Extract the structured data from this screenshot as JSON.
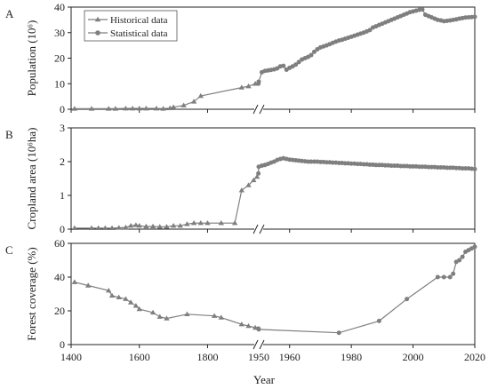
{
  "chart_data": {
    "type": "line",
    "xlabel": "Year",
    "x_ticks": [
      "1400",
      "1600",
      "1800",
      "1950",
      "1960",
      "1980",
      "2000",
      "2020"
    ],
    "x_axis_break": {
      "at": 1950,
      "left_range": [
        1400,
        1950
      ],
      "right_range": [
        1950,
        2020
      ]
    },
    "legend": {
      "placement": "top-left of panel A",
      "entries": [
        "Historical data",
        "Statistical data"
      ]
    },
    "colors": {
      "series": "#7f7f7f",
      "axis": "#222222"
    },
    "panels": [
      {
        "letter": "A",
        "ylabel": "Population (10⁶)",
        "ylim": [
          0,
          40
        ],
        "y_ticks": [
          "0",
          "10",
          "20",
          "30",
          "40"
        ],
        "series": [
          {
            "name": "Historical data",
            "marker": "triangle",
            "points": [
              [
                1410,
                0.2
              ],
              [
                1460,
                0.2
              ],
              [
                1510,
                0.2
              ],
              [
                1530,
                0.2
              ],
              [
                1560,
                0.3
              ],
              [
                1580,
                0.3
              ],
              [
                1600,
                0.3
              ],
              [
                1620,
                0.3
              ],
              [
                1650,
                0.3
              ],
              [
                1670,
                0.2
              ],
              [
                1690,
                0.4
              ],
              [
                1700,
                0.8
              ],
              [
                1730,
                1.5
              ],
              [
                1760,
                3.0
              ],
              [
                1780,
                5.2
              ],
              [
                1900,
                8.5
              ],
              [
                1920,
                9.0
              ],
              [
                1940,
                10.0
              ]
            ]
          },
          {
            "name": "Statistical data",
            "marker": "circle",
            "points": [
              [
                1949,
                10.0
              ],
              [
                1950,
                10.8
              ],
              [
                1951,
                14.5
              ],
              [
                1952,
                15.0
              ],
              [
                1953,
                15.2
              ],
              [
                1954,
                15.4
              ],
              [
                1955,
                15.6
              ],
              [
                1956,
                16.0
              ],
              [
                1957,
                16.8
              ],
              [
                1958,
                17.0
              ],
              [
                1959,
                15.5
              ],
              [
                1960,
                16.2
              ],
              [
                1961,
                16.8
              ],
              [
                1962,
                17.5
              ],
              [
                1963,
                18.5
              ],
              [
                1964,
                19.5
              ],
              [
                1965,
                20.0
              ],
              [
                1966,
                20.5
              ],
              [
                1967,
                21.2
              ],
              [
                1968,
                22.5
              ],
              [
                1969,
                23.5
              ],
              [
                1970,
                24.2
              ],
              [
                1971,
                24.6
              ],
              [
                1972,
                25.0
              ],
              [
                1973,
                25.5
              ],
              [
                1974,
                26.0
              ],
              [
                1975,
                26.5
              ],
              [
                1976,
                26.9
              ],
              [
                1977,
                27.2
              ],
              [
                1978,
                27.6
              ],
              [
                1979,
                28.0
              ],
              [
                1980,
                28.4
              ],
              [
                1981,
                28.8
              ],
              [
                1982,
                29.2
              ],
              [
                1983,
                29.6
              ],
              [
                1984,
                30.0
              ],
              [
                1985,
                30.5
              ],
              [
                1986,
                31.0
              ],
              [
                1987,
                32.0
              ],
              [
                1988,
                32.5
              ],
              [
                1989,
                33.0
              ],
              [
                1990,
                33.5
              ],
              [
                1991,
                34.0
              ],
              [
                1992,
                34.5
              ],
              [
                1993,
                35.0
              ],
              [
                1994,
                35.5
              ],
              [
                1995,
                36.0
              ],
              [
                1996,
                36.5
              ],
              [
                1997,
                37.0
              ],
              [
                1998,
                37.5
              ],
              [
                1999,
                38.0
              ],
              [
                2000,
                38.3
              ],
              [
                2001,
                38.6
              ],
              [
                2002,
                38.9
              ],
              [
                2003,
                39.1
              ],
              [
                2004,
                37.0
              ],
              [
                2005,
                36.5
              ],
              [
                2006,
                36.0
              ],
              [
                2007,
                35.5
              ],
              [
                2008,
                35.0
              ],
              [
                2009,
                34.8
              ],
              [
                2010,
                34.5
              ],
              [
                2011,
                34.6
              ],
              [
                2012,
                34.8
              ],
              [
                2013,
                35.0
              ],
              [
                2014,
                35.2
              ],
              [
                2015,
                35.5
              ],
              [
                2016,
                35.7
              ],
              [
                2017,
                35.9
              ],
              [
                2018,
                36.0
              ],
              [
                2019,
                36.1
              ],
              [
                2020,
                36.2
              ]
            ]
          }
        ]
      },
      {
        "letter": "B",
        "ylabel": "Cropland area (10⁶ha)",
        "ylim": [
          0,
          3
        ],
        "y_ticks": [
          "0",
          "1",
          "2",
          "3"
        ],
        "series": [
          {
            "name": "Historical data",
            "marker": "triangle",
            "points": [
              [
                1410,
                0.03
              ],
              [
                1460,
                0.03
              ],
              [
                1480,
                0.03
              ],
              [
                1500,
                0.03
              ],
              [
                1520,
                0.03
              ],
              [
                1540,
                0.04
              ],
              [
                1560,
                0.05
              ],
              [
                1575,
                0.1
              ],
              [
                1590,
                0.12
              ],
              [
                1600,
                0.1
              ],
              [
                1620,
                0.08
              ],
              [
                1640,
                0.08
              ],
              [
                1660,
                0.07
              ],
              [
                1680,
                0.07
              ],
              [
                1700,
                0.1
              ],
              [
                1720,
                0.1
              ],
              [
                1740,
                0.15
              ],
              [
                1760,
                0.18
              ],
              [
                1780,
                0.18
              ],
              [
                1800,
                0.18
              ],
              [
                1840,
                0.18
              ],
              [
                1880,
                0.18
              ],
              [
                1900,
                1.15
              ],
              [
                1920,
                1.3
              ],
              [
                1935,
                1.45
              ],
              [
                1945,
                1.55
              ]
            ]
          },
          {
            "name": "Statistical data",
            "marker": "circle",
            "points": [
              [
                1949,
                1.65
              ],
              [
                1950,
                1.85
              ],
              [
                1951,
                1.88
              ],
              [
                1952,
                1.9
              ],
              [
                1953,
                1.93
              ],
              [
                1954,
                1.97
              ],
              [
                1955,
                2.0
              ],
              [
                1956,
                2.05
              ],
              [
                1957,
                2.08
              ],
              [
                1958,
                2.1
              ],
              [
                1959,
                2.08
              ],
              [
                1960,
                2.06
              ],
              [
                1961,
                2.05
              ],
              [
                1962,
                2.04
              ],
              [
                1963,
                2.03
              ],
              [
                1964,
                2.02
              ],
              [
                1965,
                2.01
              ],
              [
                1966,
                2.0
              ],
              [
                1967,
                2.0
              ],
              [
                1968,
                2.0
              ],
              [
                1969,
                2.0
              ],
              [
                1970,
                1.99
              ],
              [
                1971,
                1.99
              ],
              [
                1972,
                1.98
              ],
              [
                1973,
                1.98
              ],
              [
                1974,
                1.97
              ],
              [
                1975,
                1.97
              ],
              [
                1976,
                1.96
              ],
              [
                1977,
                1.96
              ],
              [
                1978,
                1.95
              ],
              [
                1979,
                1.95
              ],
              [
                1980,
                1.94
              ],
              [
                1981,
                1.94
              ],
              [
                1982,
                1.93
              ],
              [
                1983,
                1.93
              ],
              [
                1984,
                1.92
              ],
              [
                1985,
                1.92
              ],
              [
                1986,
                1.91
              ],
              [
                1987,
                1.91
              ],
              [
                1988,
                1.9
              ],
              [
                1989,
                1.9
              ],
              [
                1990,
                1.9
              ],
              [
                1991,
                1.89
              ],
              [
                1992,
                1.89
              ],
              [
                1993,
                1.88
              ],
              [
                1994,
                1.88
              ],
              [
                1995,
                1.88
              ],
              [
                1996,
                1.87
              ],
              [
                1997,
                1.87
              ],
              [
                1998,
                1.87
              ],
              [
                1999,
                1.86
              ],
              [
                2000,
                1.86
              ],
              [
                2001,
                1.86
              ],
              [
                2002,
                1.85
              ],
              [
                2003,
                1.85
              ],
              [
                2004,
                1.85
              ],
              [
                2005,
                1.84
              ],
              [
                2006,
                1.84
              ],
              [
                2007,
                1.84
              ],
              [
                2008,
                1.83
              ],
              [
                2009,
                1.83
              ],
              [
                2010,
                1.83
              ],
              [
                2011,
                1.82
              ],
              [
                2012,
                1.82
              ],
              [
                2013,
                1.82
              ],
              [
                2014,
                1.81
              ],
              [
                2015,
                1.81
              ],
              [
                2016,
                1.8
              ],
              [
                2017,
                1.8
              ],
              [
                2018,
                1.8
              ],
              [
                2019,
                1.79
              ],
              [
                2020,
                1.78
              ]
            ]
          }
        ]
      },
      {
        "letter": "C",
        "ylabel": "Forest coverage (%)",
        "ylim": [
          0,
          60
        ],
        "y_ticks": [
          "0",
          "20",
          "40",
          "60"
        ],
        "series": [
          {
            "name": "Historical data",
            "marker": "triangle",
            "points": [
              [
                1410,
                37
              ],
              [
                1450,
                35
              ],
              [
                1510,
                32
              ],
              [
                1520,
                29
              ],
              [
                1540,
                28
              ],
              [
                1560,
                27
              ],
              [
                1575,
                25
              ],
              [
                1590,
                23
              ],
              [
                1600,
                21
              ],
              [
                1640,
                19
              ],
              [
                1660,
                16.5
              ],
              [
                1680,
                15.5
              ],
              [
                1740,
                18
              ],
              [
                1820,
                17
              ],
              [
                1840,
                16
              ],
              [
                1900,
                12
              ],
              [
                1920,
                11
              ],
              [
                1940,
                10
              ]
            ]
          },
          {
            "name": "Statistical data",
            "marker": "circle",
            "points": [
              [
                1949,
                9.5
              ],
              [
                1950,
                9
              ],
              [
                1976,
                7
              ],
              [
                1989,
                14
              ],
              [
                1998,
                27
              ],
              [
                2008,
                40
              ],
              [
                2010,
                40
              ],
              [
                2012,
                40
              ],
              [
                2013,
                42
              ],
              [
                2014,
                49
              ],
              [
                2015,
                50
              ],
              [
                2016,
                52
              ],
              [
                2017,
                55
              ],
              [
                2018,
                56
              ],
              [
                2019,
                57
              ],
              [
                2020,
                58
              ]
            ]
          }
        ]
      }
    ]
  }
}
